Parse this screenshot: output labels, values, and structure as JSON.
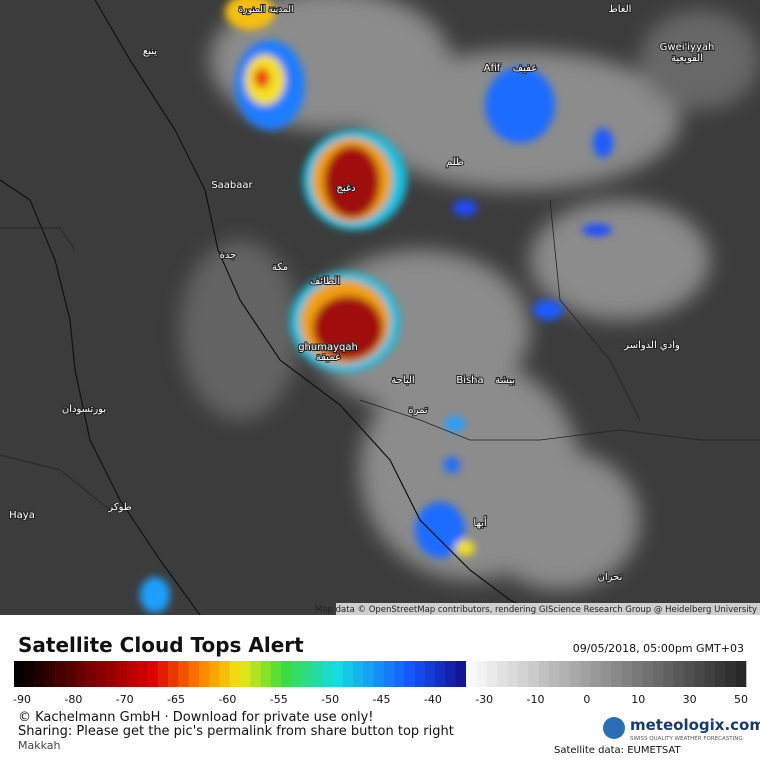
{
  "map": {
    "places": [
      "المدينة المنورة",
      "ينبع",
      "Saabaar",
      "جدة",
      "مكة",
      "الطائف",
      "ghumayqah",
      "غميقة",
      "بورتسودان",
      "Haya",
      "طوكر",
      "Afif",
      "عفيف",
      "Gwei'iyyah",
      "القويعية",
      "دغبج",
      "ظلم",
      "وادي الدواسر",
      "Bisha",
      "بيشة",
      "الباحة",
      "تمرة",
      "أبها",
      "نجران",
      "الغاط"
    ],
    "attribution": "Map data © OpenStreetMap contributors, rendering GIScience Research Group @ Heidelberg University"
  },
  "footer": {
    "title": "Satellite Cloud Tops Alert",
    "timestamp": "09/05/2018, 05:00pm GMT+03",
    "colorbar_ticks": [
      -90,
      -80,
      -70,
      -65,
      -60,
      -55,
      -50,
      -45,
      -40,
      -30,
      -10,
      0,
      10,
      30,
      50
    ],
    "copyright": "© Kachelmann GmbH · Download for private use only!",
    "sharing": "Sharing: Please get the pic's permalink from share button top right",
    "region": "Makkah",
    "brand": "meteologix.com",
    "brand_tagline": "SWISS QUALITY WEATHER FORECASTING",
    "source": "Satellite data: EUMETSAT"
  }
}
